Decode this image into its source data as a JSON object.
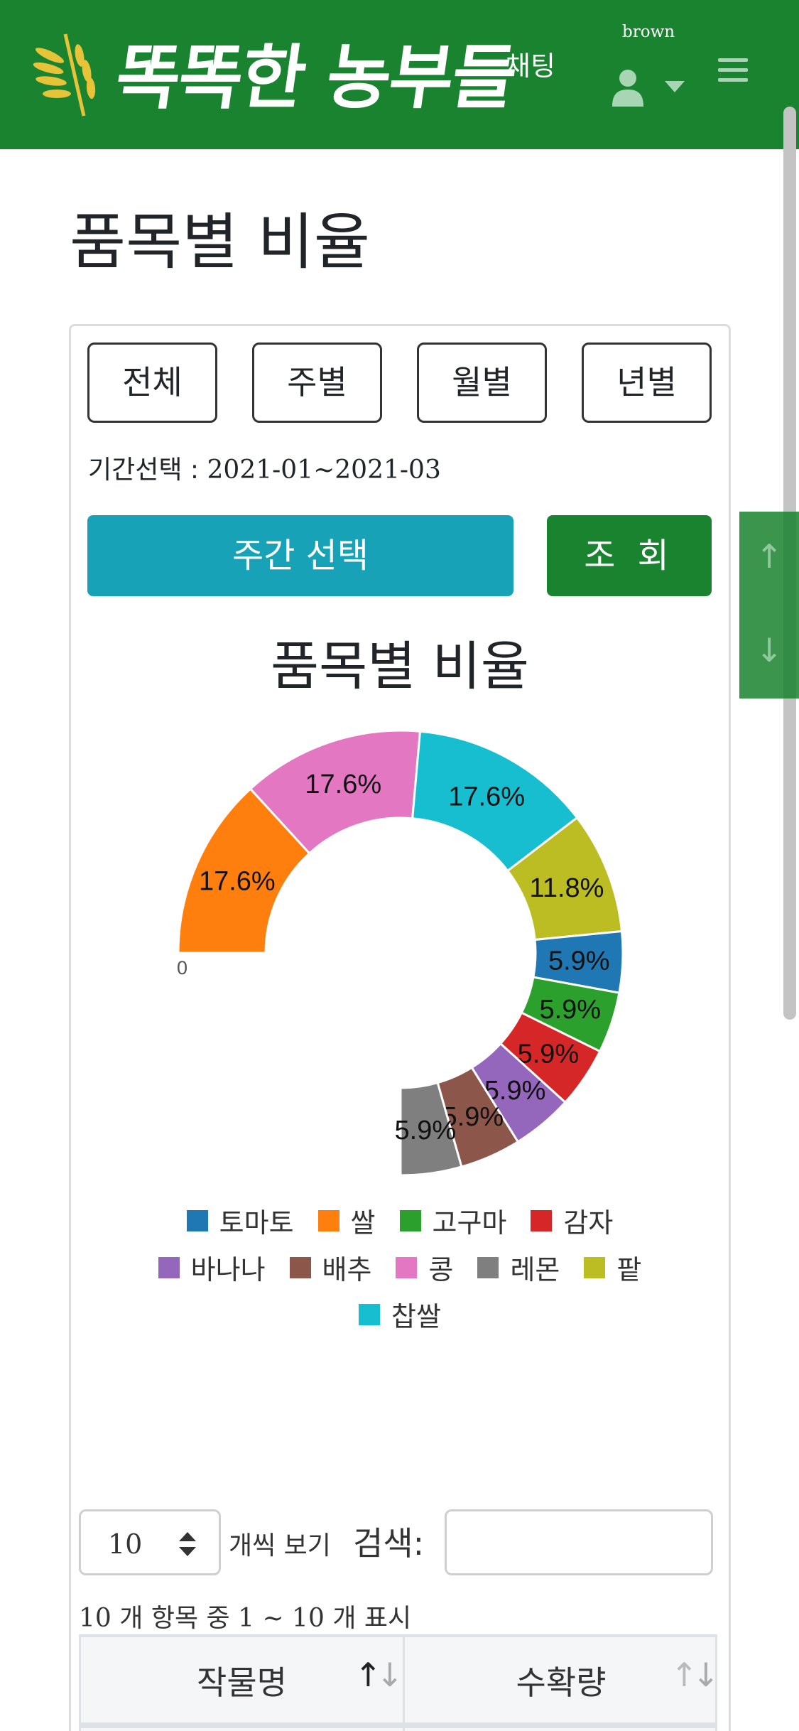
{
  "navbar": {
    "logo_text": "똑똑한 농부들",
    "chat_label": "채팅",
    "username": "brown",
    "brand_color": "#1a832f"
  },
  "page": {
    "title": "품목별 비율"
  },
  "filters": {
    "period_buttons": [
      "전체",
      "주별",
      "월별",
      "년별"
    ],
    "period_prefix": "기간선택 :",
    "period_value": "2021-01~2021-03",
    "week_select_label": "주간 선택",
    "search_label": "조 회"
  },
  "scroll_controls": {
    "up_icon": "↑",
    "down_icon": "↓"
  },
  "chart_data": {
    "type": "pie",
    "title": "품목별 비율",
    "variant": "donut (270° arc)",
    "start_label": "0",
    "categories": [
      "토마토",
      "쌀",
      "고구마",
      "감자",
      "바나나",
      "배추",
      "콩",
      "레몬",
      "팥",
      "찹쌀"
    ],
    "values": [
      5.9,
      17.6,
      5.9,
      5.9,
      5.9,
      5.9,
      17.6,
      5.9,
      11.8,
      17.6
    ],
    "labels": [
      "5.9%",
      "17.6%",
      "5.9%",
      "5.9%",
      "5.9%",
      "5.9%",
      "17.6%",
      "5.9%",
      "11.8%",
      "17.6%"
    ],
    "draw_order": [
      1,
      6,
      9,
      8,
      0,
      2,
      3,
      4,
      5,
      7
    ],
    "colors": [
      "#1f77b4",
      "#ff7f0e",
      "#2ca02c",
      "#d62728",
      "#9467bd",
      "#8c564b",
      "#e377c2",
      "#7f7f7f",
      "#bcbd22",
      "#17becf"
    ],
    "legend_position": "bottom"
  },
  "table": {
    "length_value": "10",
    "length_suffix": "개씩 보기",
    "search_label": "검색:",
    "search_value": "",
    "info_total": "10",
    "info_mid": "개 항목 중",
    "info_range": "1 ~ 10",
    "info_suffix": "개 표시",
    "columns": [
      "작물명",
      "수확량"
    ]
  }
}
